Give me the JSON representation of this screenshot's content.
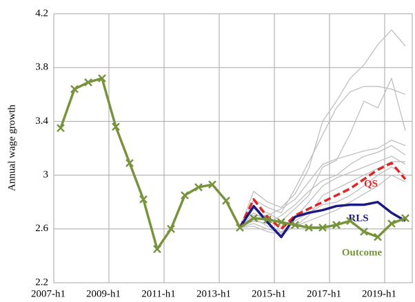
{
  "chart_data": {
    "type": "line",
    "y_label": "Annual wage growth",
    "categories": [
      "2007-h1",
      null,
      null,
      null,
      "2009-h1",
      null,
      null,
      null,
      "2011-h1",
      null,
      null,
      null,
      "2013-h1",
      null,
      null,
      null,
      "2015-h1",
      null,
      null,
      null,
      "2017-h1",
      null,
      null,
      null,
      "2019-h1",
      null
    ],
    "ylim": [
      2.2,
      4.2
    ],
    "yticks": [
      2.2,
      2.6,
      3,
      3.4,
      3.8,
      4.2
    ],
    "grid": true,
    "series": [
      {
        "color": "#bfbfbf",
        "values": [
          null,
          null,
          null,
          null,
          null,
          null,
          null,
          null,
          null,
          null,
          null,
          null,
          null,
          2.61,
          2.88,
          2.8,
          2.76,
          2.86,
          3.05,
          3.4,
          3.55,
          3.72,
          3.82,
          3.97,
          4.08,
          3.96
        ]
      },
      {
        "color": "#bfbfbf",
        "values": [
          null,
          null,
          null,
          null,
          null,
          null,
          null,
          null,
          null,
          null,
          null,
          null,
          null,
          2.61,
          2.82,
          2.76,
          2.72,
          2.9,
          3.1,
          3.3,
          3.5,
          3.62,
          3.66,
          3.66,
          3.64,
          3.6
        ]
      },
      {
        "color": "#bfbfbf",
        "values": [
          null,
          null,
          null,
          null,
          null,
          null,
          null,
          null,
          null,
          null,
          null,
          null,
          null,
          2.61,
          2.75,
          2.72,
          2.66,
          2.75,
          2.85,
          3.06,
          3.11,
          3.31,
          3.55,
          3.5,
          3.72,
          3.33
        ]
      },
      {
        "color": "#bfbfbf",
        "values": [
          null,
          null,
          null,
          null,
          null,
          null,
          null,
          null,
          null,
          null,
          null,
          null,
          null,
          2.61,
          2.7,
          2.7,
          2.75,
          2.82,
          2.95,
          3.08,
          3.12,
          3.15,
          3.18,
          3.2,
          3.26,
          3.22
        ]
      },
      {
        "color": "#bfbfbf",
        "values": [
          null,
          null,
          null,
          null,
          null,
          null,
          null,
          null,
          null,
          null,
          null,
          null,
          null,
          2.61,
          2.66,
          2.64,
          2.7,
          2.78,
          2.88,
          2.96,
          3.0,
          3.08,
          3.14,
          3.17,
          3.22,
          3.15
        ]
      },
      {
        "color": "#bfbfbf",
        "values": [
          null,
          null,
          null,
          null,
          null,
          null,
          null,
          null,
          null,
          null,
          null,
          null,
          null,
          2.61,
          2.72,
          2.66,
          2.62,
          2.68,
          2.8,
          2.92,
          2.98,
          3.02,
          3.06,
          3.1,
          3.14,
          3.08
        ]
      },
      {
        "color": "#bfbfbf",
        "values": [
          null,
          null,
          null,
          null,
          null,
          null,
          null,
          null,
          null,
          null,
          null,
          null,
          null,
          2.61,
          2.68,
          2.62,
          2.58,
          2.62,
          2.7,
          2.85,
          2.9,
          2.95,
          3.0,
          3.05,
          3.1,
          3.1
        ]
      },
      {
        "color": "#bfbfbf",
        "values": [
          null,
          null,
          null,
          null,
          null,
          null,
          null,
          null,
          null,
          null,
          null,
          null,
          null,
          2.61,
          2.64,
          2.6,
          2.57,
          2.66,
          2.72,
          2.78,
          2.8,
          2.85,
          2.92,
          3.0,
          3.06,
          3.0
        ]
      },
      {
        "color": "#bfbfbf",
        "values": [
          null,
          null,
          null,
          null,
          null,
          null,
          null,
          null,
          null,
          null,
          null,
          null,
          null,
          2.61,
          2.62,
          2.58,
          2.56,
          2.62,
          2.66,
          2.7,
          2.74,
          2.8,
          2.86,
          2.92,
          3.0,
          2.95
        ]
      },
      {
        "name": "QS",
        "color": "#e02424",
        "dashed": true,
        "values": [
          null,
          null,
          null,
          null,
          null,
          null,
          null,
          null,
          null,
          null,
          null,
          null,
          null,
          2.61,
          2.82,
          2.69,
          2.6,
          2.7,
          2.75,
          2.8,
          2.85,
          2.9,
          2.97,
          3.04,
          3.09,
          2.97
        ]
      },
      {
        "name": "RLS",
        "color": "#1a1a80",
        "values": [
          null,
          null,
          null,
          null,
          null,
          null,
          null,
          null,
          null,
          null,
          null,
          null,
          null,
          2.61,
          2.77,
          2.65,
          2.54,
          2.69,
          2.72,
          2.74,
          2.77,
          2.78,
          2.78,
          2.8,
          2.72,
          2.66
        ]
      },
      {
        "name": "Outcome",
        "color": "#77933c",
        "markers": true,
        "values": [
          3.35,
          3.64,
          3.69,
          3.72,
          3.36,
          3.09,
          2.82,
          2.45,
          2.6,
          2.85,
          2.91,
          2.93,
          2.81,
          2.61,
          2.68,
          2.67,
          2.65,
          2.63,
          2.61,
          2.61,
          2.63,
          2.66,
          2.58,
          2.54,
          2.64,
          2.68
        ]
      }
    ]
  }
}
